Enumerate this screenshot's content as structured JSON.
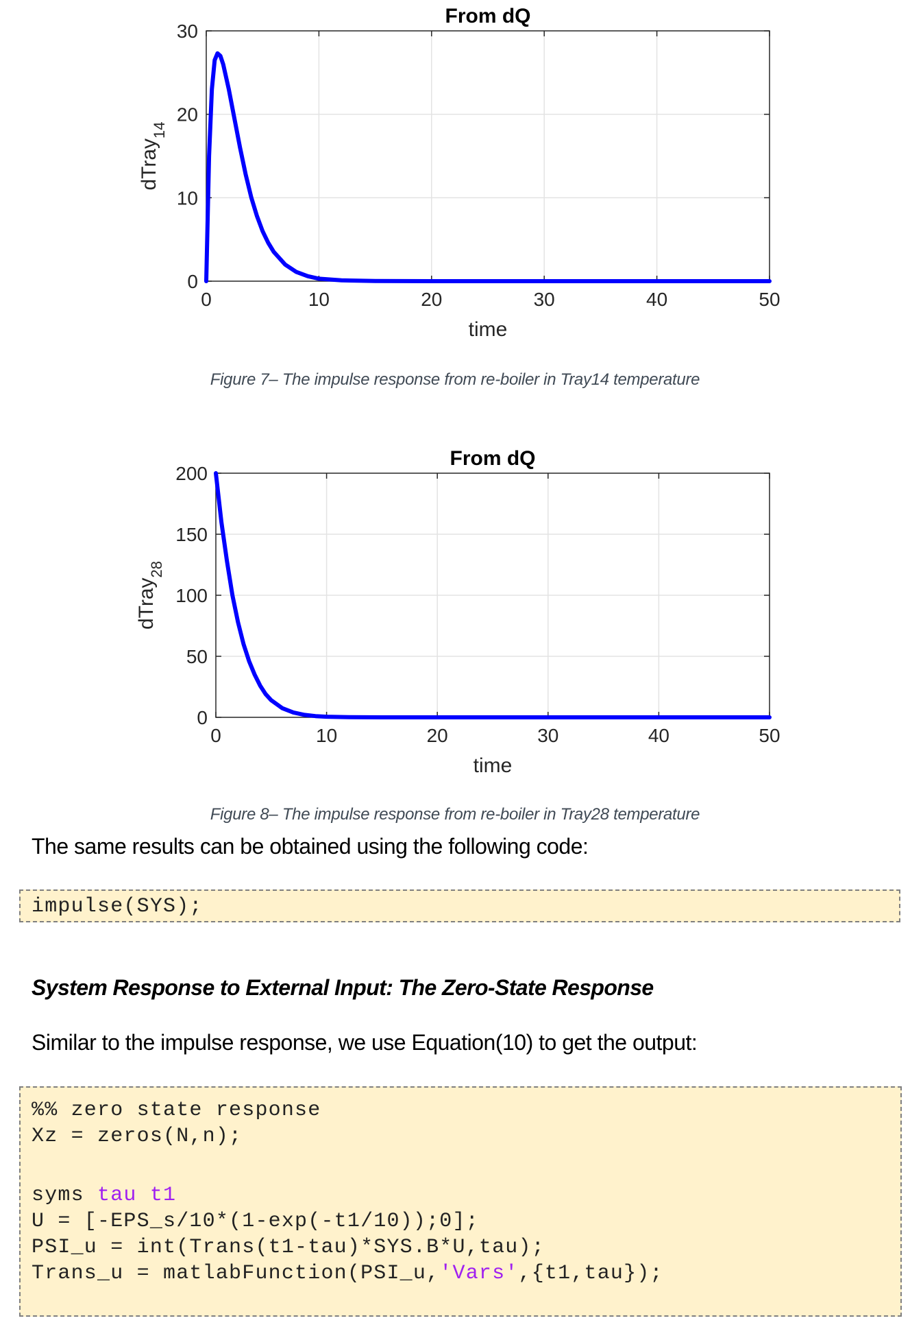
{
  "figure7": {
    "caption": "Figure 7– The impulse response from re-boiler in Tray14 temperature"
  },
  "figure8": {
    "caption": "Figure 8– The impulse response from re-boiler in Tray28 temperature"
  },
  "chart_data": [
    {
      "type": "line",
      "title": "From dQ",
      "xlabel": "time",
      "ylabel": "dTray",
      "ylabel_subscript": "14",
      "xlim": [
        0,
        50
      ],
      "ylim": [
        0,
        30
      ],
      "xticks": [
        "0",
        "10",
        "20",
        "30",
        "40",
        "50"
      ],
      "yticks": [
        "0",
        "10",
        "20",
        "30"
      ],
      "grid": true,
      "line_color": "#0000ff",
      "series": [
        {
          "name": "dTray14",
          "x": [
            0,
            0.25,
            0.5,
            0.75,
            1.0,
            1.25,
            1.5,
            2.0,
            2.5,
            3.0,
            3.5,
            4.0,
            4.5,
            5.0,
            5.5,
            6.0,
            7.0,
            8.0,
            9.0,
            10.0,
            12.0,
            15.0,
            20.0,
            30.0,
            40.0,
            50.0
          ],
          "y": [
            0,
            15,
            23,
            26.5,
            27.3,
            27.0,
            26.0,
            23.0,
            19.5,
            16.0,
            12.8,
            10.0,
            7.8,
            6.0,
            4.6,
            3.5,
            2.0,
            1.1,
            0.6,
            0.3,
            0.1,
            0.02,
            0,
            0,
            0,
            0
          ]
        }
      ]
    },
    {
      "type": "line",
      "title": "From dQ",
      "xlabel": "time",
      "ylabel": "dTray",
      "ylabel_subscript": "28",
      "xlim": [
        0,
        50
      ],
      "ylim": [
        0,
        200
      ],
      "xticks": [
        "0",
        "10",
        "20",
        "30",
        "40",
        "50"
      ],
      "yticks": [
        "0",
        "50",
        "100",
        "150",
        "200"
      ],
      "grid": true,
      "line_color": "#0000ff",
      "series": [
        {
          "name": "dTray28",
          "x": [
            0,
            0.5,
            1.0,
            1.5,
            2.0,
            2.5,
            3.0,
            3.5,
            4.0,
            4.5,
            5.0,
            6.0,
            7.0,
            8.0,
            9.0,
            10.0,
            12.0,
            15.0,
            20.0,
            30.0,
            40.0,
            50.0
          ],
          "y": [
            200,
            160,
            128,
            100,
            78,
            60,
            46,
            35,
            26,
            19,
            14,
            7.5,
            4,
            2,
            1,
            0.5,
            0.1,
            0,
            0,
            0,
            0,
            0
          ]
        }
      ]
    }
  ],
  "text": {
    "para1": "The same results can be obtained using the following code:",
    "heading": "System Response to External Input: The Zero-State Response",
    "para2": "Similar to the impulse response, we use Equation(10) to get the output:"
  },
  "code1": {
    "lines": [
      "impulse(SYS);"
    ]
  },
  "code2": {
    "line1": "%% zero state response",
    "line2": "Xz = zeros(N,n);",
    "line3": "",
    "line4_kw": "syms ",
    "line4_vars": "tau t1",
    "line5": "U = [-EPS_s/10*(1-exp(-t1/10));0];",
    "line6": "PSI_u = int(Trans(t1-tau)*SYS.B*U,tau);",
    "line7_a": "Trans_u = matlabFunction(PSI_u,",
    "line7_str": "'Vars'",
    "line7_b": ",{t1,tau});"
  }
}
